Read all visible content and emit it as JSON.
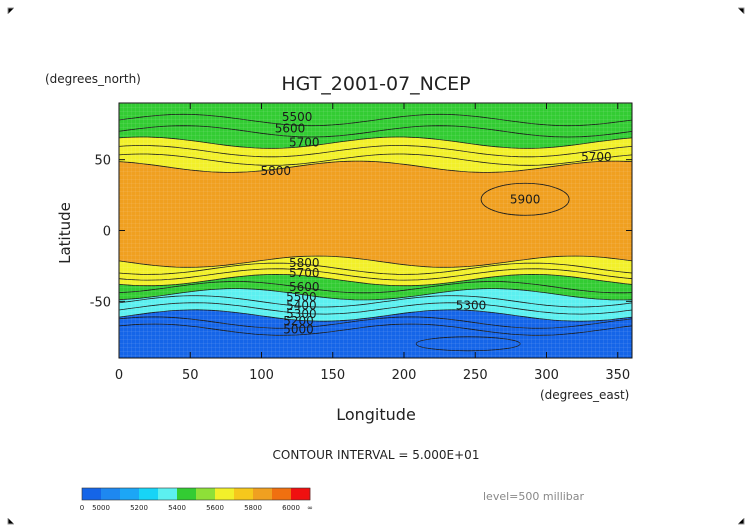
{
  "chart_data": {
    "type": "heatmap",
    "title": "HGT_2001-07_NCEP",
    "ylabel": "Latitude",
    "xlabel": "Longitude",
    "y_units": "(degrees_north)",
    "x_units": "(degrees_east)",
    "xlim": [
      0,
      360
    ],
    "ylim": [
      -90,
      90
    ],
    "x_ticks": [
      "0",
      "50",
      "100",
      "150",
      "200",
      "250",
      "300",
      "350"
    ],
    "y_ticks": [
      "50",
      "0",
      "-50"
    ],
    "contour_interval_text": "CONTOUR INTERVAL = 5.000E+01",
    "level_text": "level=500 millibar",
    "colorbar": {
      "labels": [
        "0",
        "5000",
        "5200",
        "5400",
        "5600",
        "5800",
        "6000",
        "∞"
      ],
      "bands": [
        {
          "min": 0,
          "max": 5000,
          "color": "#1565e8"
        },
        {
          "min": 5000,
          "max": 5100,
          "color": "#1e88f0"
        },
        {
          "min": 5100,
          "max": 5200,
          "color": "#1ca6f6"
        },
        {
          "min": 5200,
          "max": 5300,
          "color": "#17d4f7"
        },
        {
          "min": 5300,
          "max": 5400,
          "color": "#5cf0f0"
        },
        {
          "min": 5400,
          "max": 5500,
          "color": "#33cc33"
        },
        {
          "min": 5500,
          "max": 5600,
          "color": "#8ee038"
        },
        {
          "min": 5600,
          "max": 5700,
          "color": "#f2f02a"
        },
        {
          "min": 5700,
          "max": 5800,
          "color": "#f6c81c"
        },
        {
          "min": 5800,
          "max": 5900,
          "color": "#f0a020"
        },
        {
          "min": 5900,
          "max": 6000,
          "color": "#f07010"
        },
        {
          "min": 6000,
          "max": 999999,
          "color": "#f01010"
        }
      ]
    },
    "contour_labels": [
      {
        "text": "5500",
        "lon": 125,
        "lat": 80
      },
      {
        "text": "5600",
        "lon": 120,
        "lat": 72
      },
      {
        "text": "5700",
        "lon": 130,
        "lat": 62
      },
      {
        "text": "5800",
        "lon": 110,
        "lat": 42
      },
      {
        "text": "5700",
        "lon": 335,
        "lat": 52
      },
      {
        "text": "5900",
        "lon": 285,
        "lat": 22
      },
      {
        "text": "5800",
        "lon": 130,
        "lat": -23
      },
      {
        "text": "5700",
        "lon": 130,
        "lat": -30
      },
      {
        "text": "5600",
        "lon": 130,
        "lat": -40
      },
      {
        "text": "5500",
        "lon": 128,
        "lat": -47
      },
      {
        "text": "5400",
        "lon": 128,
        "lat": -53
      },
      {
        "text": "5300",
        "lon": 128,
        "lat": -59
      },
      {
        "text": "5200",
        "lon": 126,
        "lat": -64
      },
      {
        "text": "5000",
        "lon": 126,
        "lat": -70
      },
      {
        "text": "5300",
        "lon": 247,
        "lat": -53
      }
    ],
    "field_bands": [
      {
        "lat_top": 90,
        "lat_bottom": 62,
        "value_label": "5500",
        "color": "#33cc33"
      },
      {
        "lat_top": 62,
        "lat_bottom": 45,
        "value_label": "5700",
        "color": "#f2f02a"
      },
      {
        "lat_top": 45,
        "lat_bottom": -22,
        "value_label": "5800",
        "color": "#f0a020"
      },
      {
        "lat_top": -22,
        "lat_bottom": -35,
        "value_label": "5700",
        "color": "#f2f02a"
      },
      {
        "lat_top": -35,
        "lat_bottom": -45,
        "value_label": "5500",
        "color": "#33cc33"
      },
      {
        "lat_top": -45,
        "lat_bottom": -60,
        "value_label": "5300",
        "color": "#5cf0f0"
      },
      {
        "lat_top": -60,
        "lat_bottom": -90,
        "value_label": "5000",
        "color": "#1565e8"
      }
    ]
  }
}
